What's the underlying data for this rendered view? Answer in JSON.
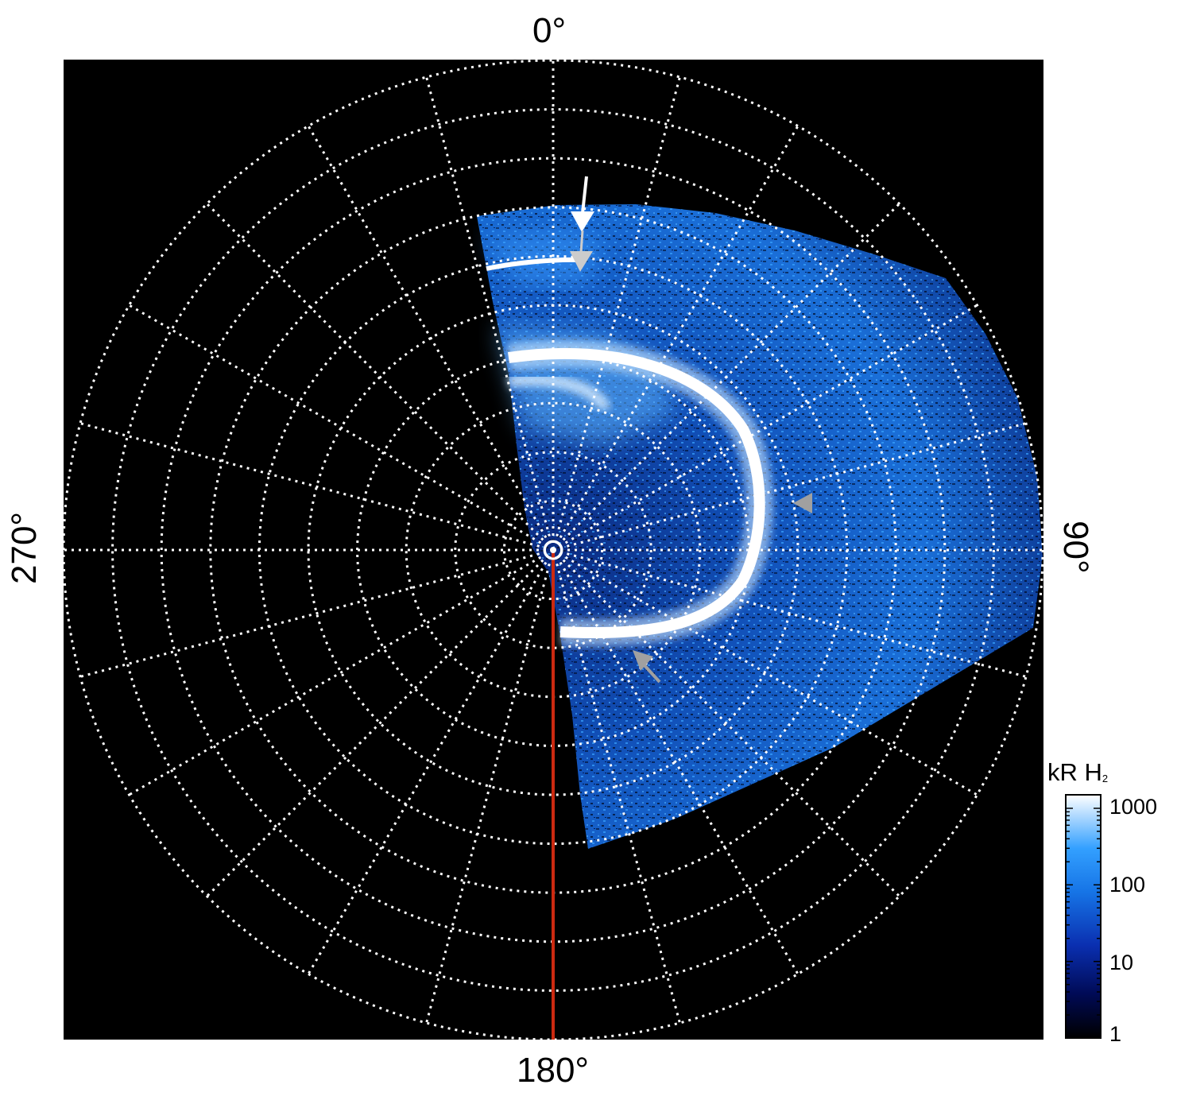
{
  "image": {
    "description_type": "polar projection of an ultraviolet auroral emission image",
    "colors": {
      "background": "#000000",
      "grid": "#ffffff",
      "emission_bright": "#f0f8ff",
      "emission_mid": "#1e8cff",
      "emission_dark": "#000a40",
      "meridian_line": "#cc2a10",
      "arrow_white": "#ffffff",
      "arrow_gray": "#a0a0a0"
    }
  },
  "labels": {
    "top": "0°",
    "right": "90°",
    "bottom": "180°",
    "left": "270°"
  },
  "colorbar": {
    "title_main": "kR H",
    "title_sub": "2",
    "scale": "log",
    "ticks": [
      "1000",
      "100",
      "10",
      "1"
    ],
    "tick_values": [
      1000,
      100,
      10,
      1
    ],
    "range": [
      1,
      1500
    ]
  },
  "grid": {
    "rings": 10,
    "meridians_deg_step": 15
  },
  "annotations": {
    "icons": [
      "arrow-white-icon",
      "arrow-white-icon",
      "arrow-gray-icon",
      "arrow-gray-icon",
      "pole-marker-icon"
    ]
  }
}
